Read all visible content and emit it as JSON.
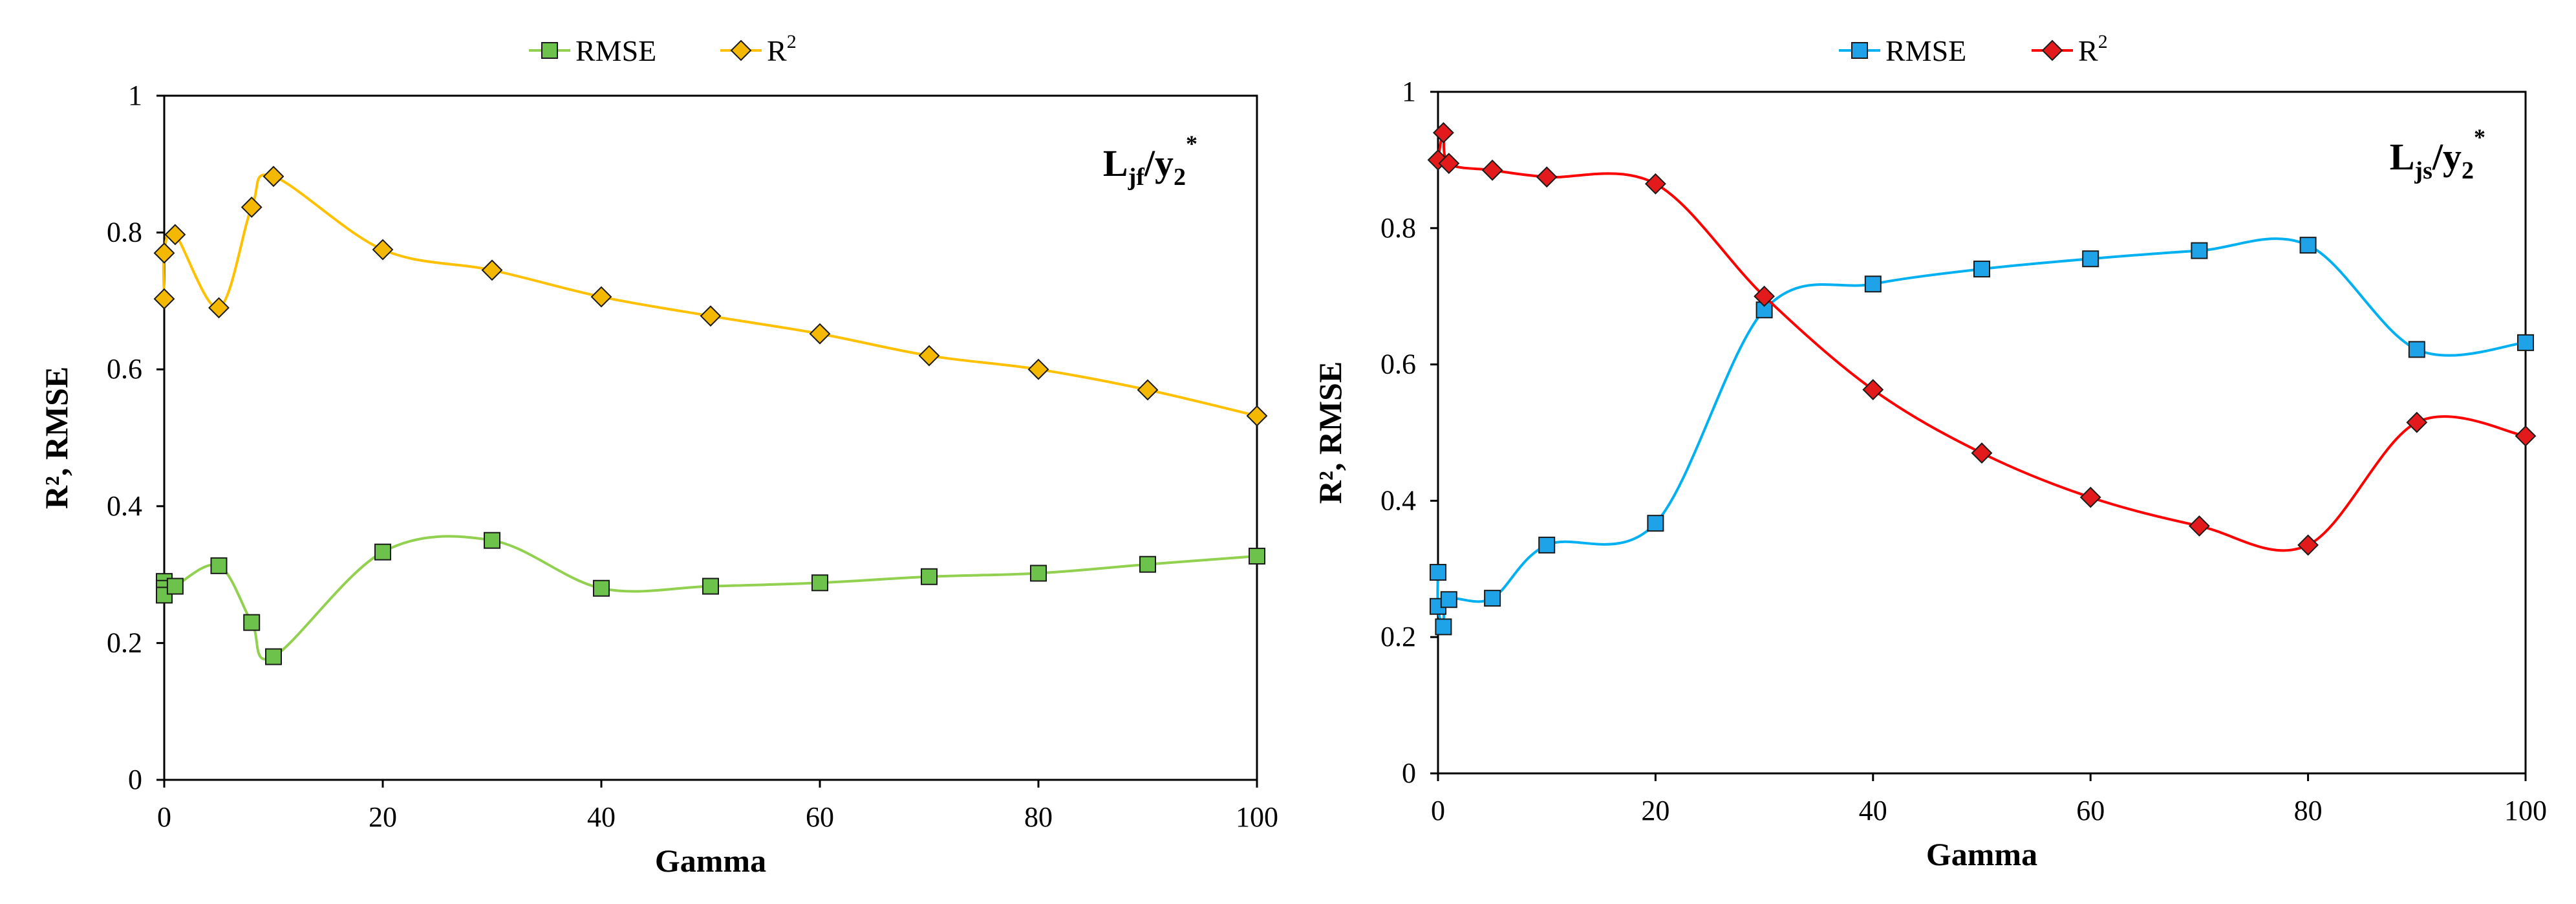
{
  "chart_data": [
    {
      "type": "line",
      "xlabel": "Gamma",
      "ylabel": "R², RMSE",
      "xlim": [
        0,
        100
      ],
      "ylim": [
        0,
        1
      ],
      "xticks": [
        0,
        20,
        40,
        60,
        80,
        100
      ],
      "yticks": [
        0,
        0.2,
        0.4,
        0.6,
        0.8,
        1
      ],
      "xtick_labels": [
        "0",
        "20",
        "40",
        "60",
        "80",
        "100"
      ],
      "ytick_labels": [
        "0",
        "0.2",
        "0.4",
        "0.6",
        "0.8",
        "1"
      ],
      "annotation": {
        "base": "L",
        "base_sub": "jf",
        "sep": "/y",
        "sub": "2",
        "sup": "*"
      },
      "legend": {
        "placement": "top-center"
      },
      "series": [
        {
          "name": "RMSE",
          "legend_label": "RMSE",
          "marker": "square",
          "line_color": "#92d050",
          "marker_fill": "#6cc24a",
          "x": [
            0,
            0,
            0,
            1,
            5,
            8,
            10,
            20,
            30,
            40,
            50,
            60,
            70,
            80,
            90,
            100
          ],
          "y": [
            0.29,
            0.28,
            0.27,
            0.283,
            0.313,
            0.23,
            0.18,
            0.333,
            0.35,
            0.28,
            0.283,
            0.288,
            0.297,
            0.302,
            0.315,
            0.327
          ]
        },
        {
          "name": "R2",
          "legend_label": "R",
          "legend_sup": "2",
          "marker": "diamond",
          "line_color": "#ffc000",
          "marker_fill": "#f5b800",
          "x": [
            0,
            0,
            1,
            5,
            8,
            10,
            20,
            30,
            40,
            50,
            60,
            70,
            80,
            90,
            100
          ],
          "y": [
            0.703,
            0.77,
            0.797,
            0.69,
            0.837,
            0.882,
            0.775,
            0.745,
            0.706,
            0.678,
            0.652,
            0.62,
            0.6,
            0.57,
            0.532
          ]
        }
      ]
    },
    {
      "type": "line",
      "xlabel": "Gamma",
      "ylabel": "R², RMSE",
      "xlim": [
        0,
        100
      ],
      "ylim": [
        0,
        1
      ],
      "xticks": [
        0,
        20,
        40,
        60,
        80,
        100
      ],
      "yticks": [
        0,
        0.2,
        0.4,
        0.6,
        0.8,
        1
      ],
      "xtick_labels": [
        "0",
        "20",
        "40",
        "60",
        "80",
        "100"
      ],
      "ytick_labels": [
        "0",
        "0.2",
        "0.4",
        "0.6",
        "0.8",
        "1"
      ],
      "annotation": {
        "base": "L",
        "base_sub": "js",
        "sep": "/y",
        "sub": "2",
        "sup": "*"
      },
      "legend": {
        "placement": "top-center"
      },
      "series": [
        {
          "name": "RMSE",
          "legend_label": "RMSE",
          "marker": "square",
          "line_color": "#00b0f0",
          "marker_fill": "#1fa3e8",
          "x": [
            0,
            0,
            0.5,
            1,
            5,
            10,
            20,
            30,
            40,
            50,
            60,
            70,
            80,
            90,
            100
          ],
          "y": [
            0.295,
            0.245,
            0.215,
            0.255,
            0.257,
            0.335,
            0.367,
            0.68,
            0.718,
            0.74,
            0.755,
            0.767,
            0.775,
            0.622,
            0.632
          ]
        },
        {
          "name": "R2",
          "legend_label": "R",
          "legend_sup": "2",
          "marker": "diamond",
          "line_color": "#ff0000",
          "marker_fill": "#e31a1c",
          "x": [
            0,
            0.5,
            1,
            5,
            10,
            20,
            30,
            40,
            50,
            60,
            70,
            80,
            90,
            100
          ],
          "y": [
            0.9,
            0.94,
            0.895,
            0.885,
            0.875,
            0.865,
            0.7,
            0.563,
            0.47,
            0.405,
            0.363,
            0.335,
            0.515,
            0.495
          ]
        }
      ]
    }
  ]
}
